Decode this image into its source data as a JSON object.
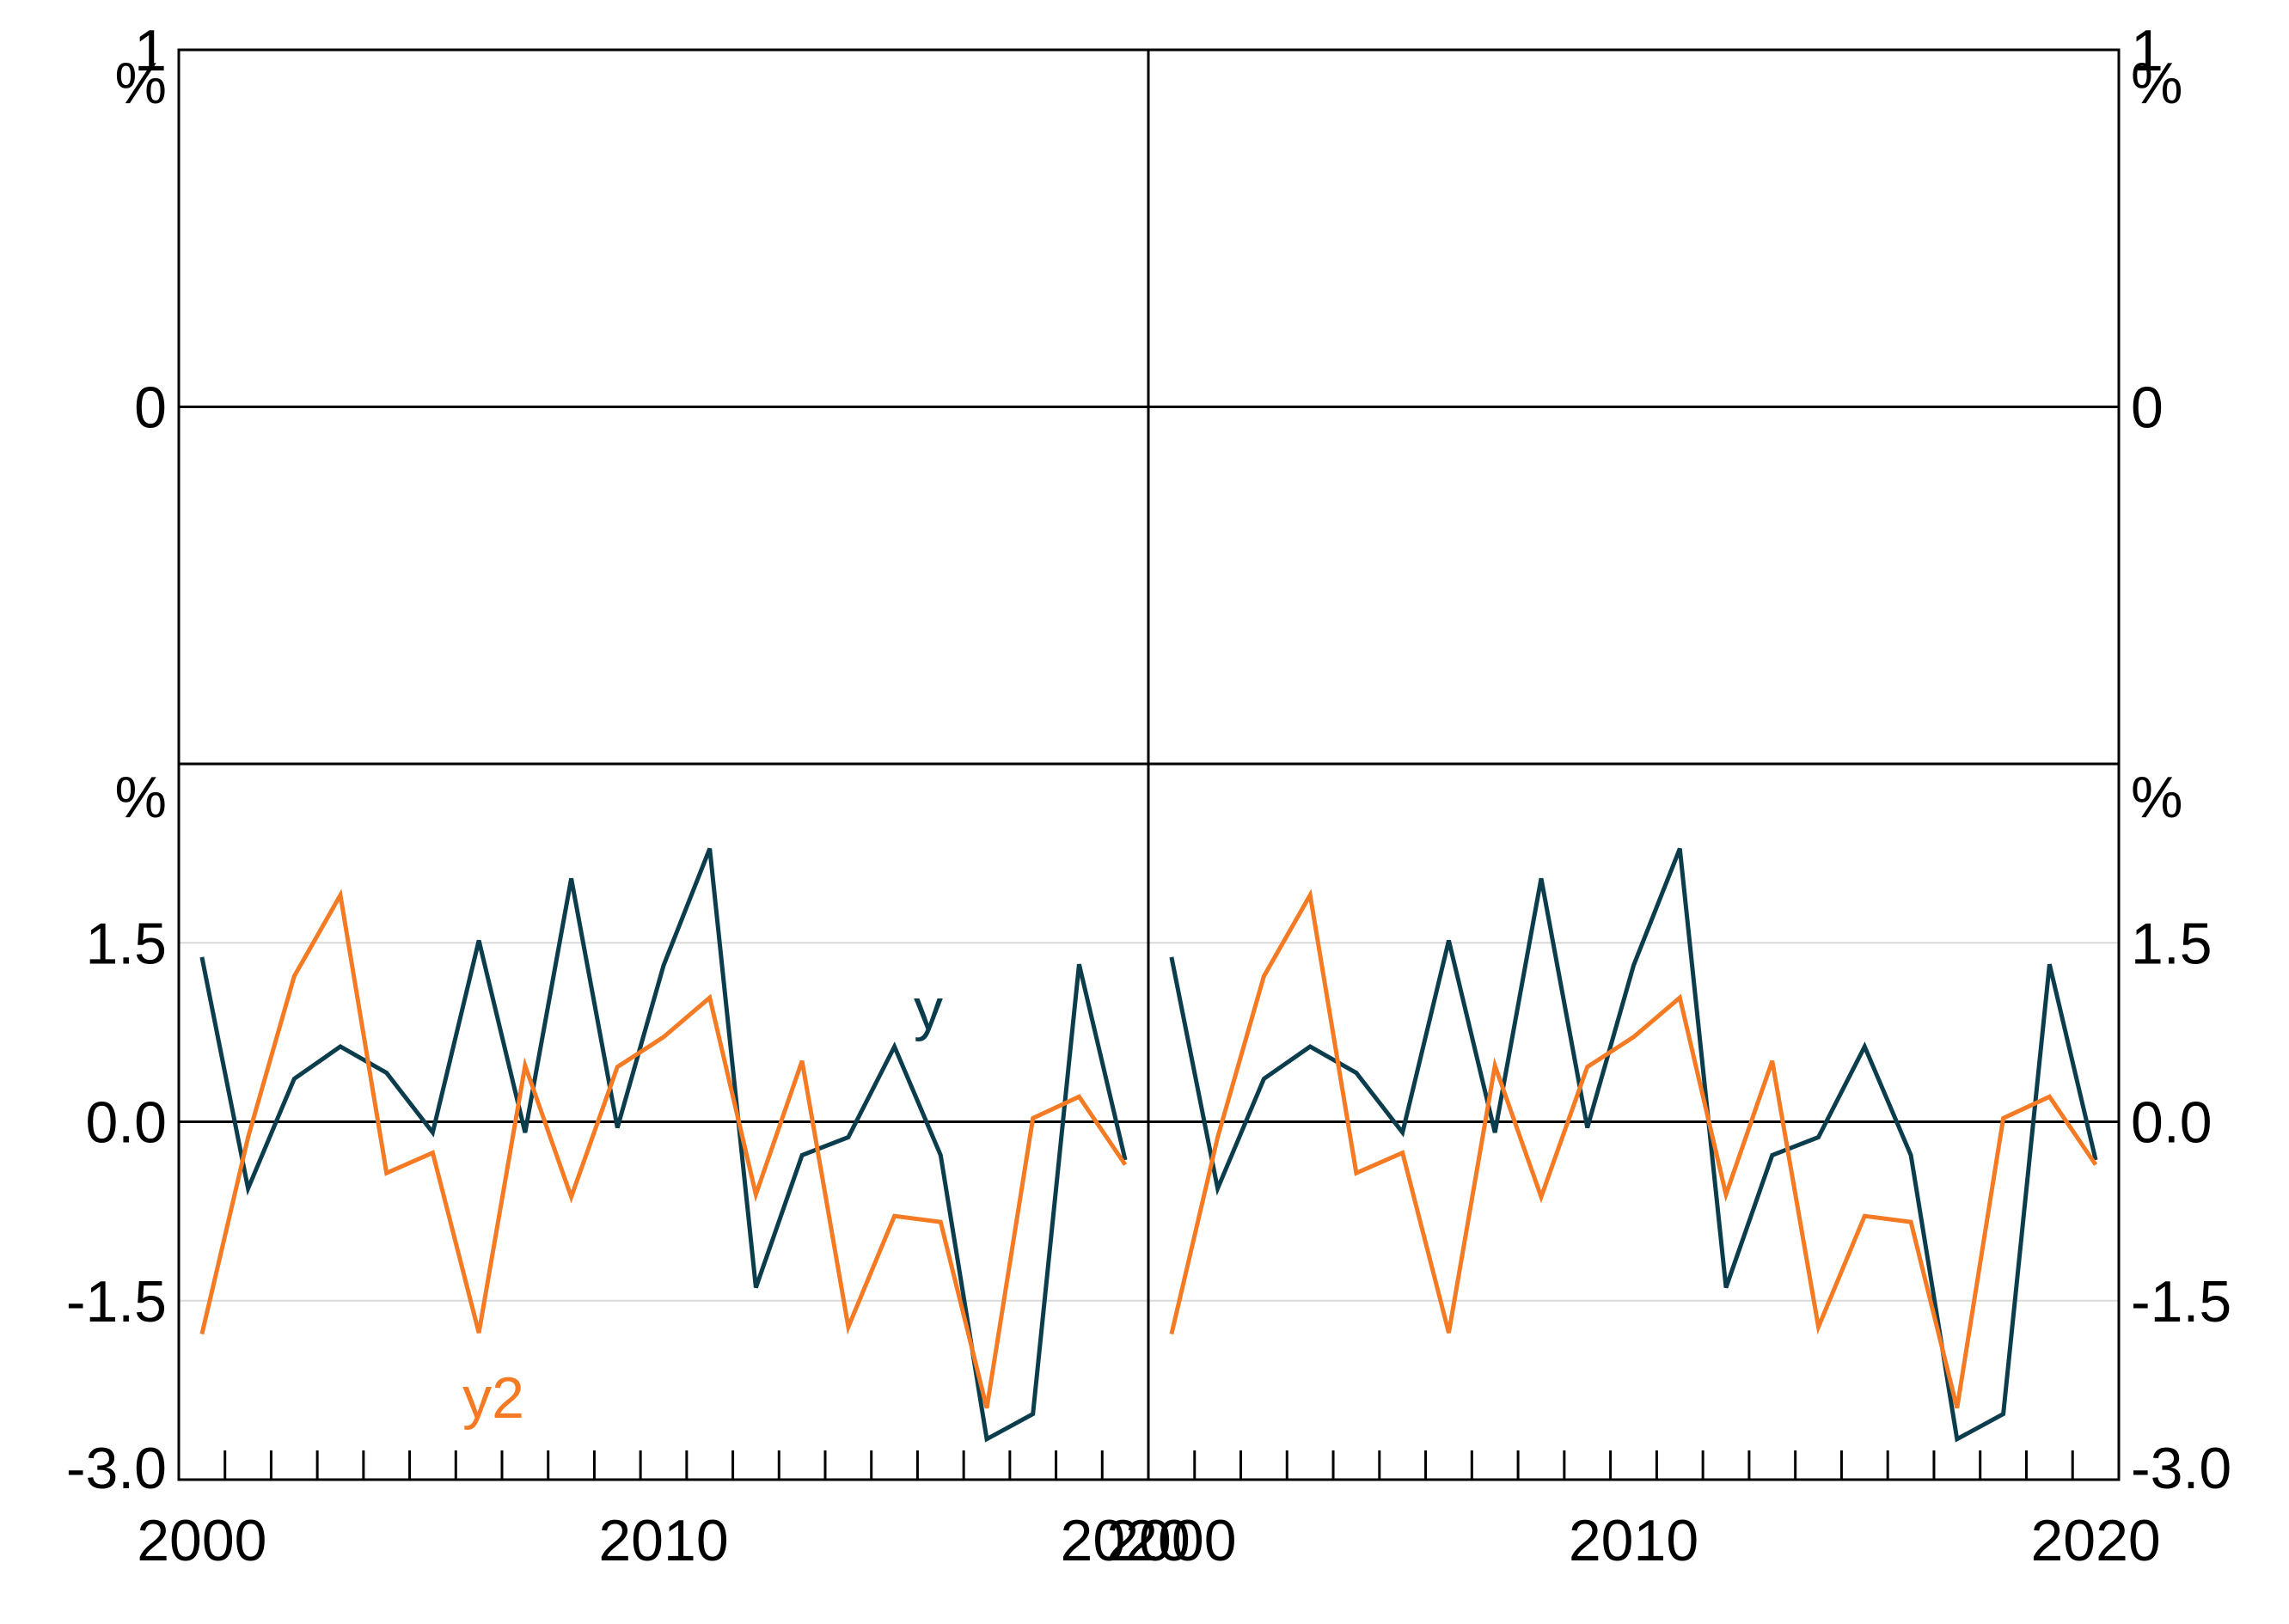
{
  "chart_data": [
    {
      "type": "line",
      "panel": "top-left",
      "unit_left": "%",
      "ylim": [
        -1,
        1
      ],
      "yticks": [
        "1",
        "0"
      ],
      "series": []
    },
    {
      "type": "line",
      "panel": "top-right",
      "unit_right": "%",
      "ylim": [
        -1,
        1
      ],
      "yticks": [
        "1",
        "0"
      ],
      "series": []
    },
    {
      "type": "line",
      "panel": "bottom-left",
      "unit_left": "%",
      "ylim": [
        -3.0,
        3.0
      ],
      "yticks": [
        "1.5",
        "0.0",
        "-1.5",
        "-3.0"
      ],
      "xlim": [
        1999.5,
        2020.5
      ],
      "xticks": [
        "2000",
        "2010",
        "2020"
      ],
      "x": [
        2000,
        2001,
        2002,
        2003,
        2004,
        2005,
        2006,
        2007,
        2008,
        2009,
        2010,
        2011,
        2012,
        2013,
        2014,
        2015,
        2016,
        2017,
        2018,
        2019,
        2020
      ],
      "series": [
        {
          "name": "y",
          "color": "#0b3d4c",
          "values": [
            1.38,
            -0.56,
            0.36,
            0.63,
            0.41,
            -0.09,
            1.52,
            -0.09,
            2.04,
            -0.05,
            1.31,
            2.29,
            -1.39,
            -0.28,
            -0.13,
            0.63,
            -0.28,
            -2.66,
            -2.45,
            1.32,
            -0.32
          ]
        },
        {
          "name": "y2",
          "color": "#f47a23",
          "values": [
            -1.78,
            -0.13,
            1.22,
            1.9,
            -0.43,
            -0.26,
            -1.77,
            0.47,
            -0.63,
            0.46,
            0.71,
            1.04,
            -0.61,
            0.51,
            -1.72,
            -0.79,
            -0.84,
            -2.4,
            0.03,
            0.21,
            -0.36
          ]
        }
      ]
    },
    {
      "type": "line",
      "panel": "bottom-right",
      "unit_right": "%",
      "ylim": [
        -3.0,
        3.0
      ],
      "yticks": [
        "1.5",
        "0.0",
        "-1.5",
        "-3.0"
      ],
      "xlim": [
        1999.5,
        2020.5
      ],
      "xticks": [
        "2000",
        "2010",
        "2020"
      ],
      "x": [
        2000,
        2001,
        2002,
        2003,
        2004,
        2005,
        2006,
        2007,
        2008,
        2009,
        2010,
        2011,
        2012,
        2013,
        2014,
        2015,
        2016,
        2017,
        2018,
        2019,
        2020
      ],
      "series": [
        {
          "name": "y",
          "color": "#0b3d4c",
          "values": [
            1.38,
            -0.56,
            0.36,
            0.63,
            0.41,
            -0.09,
            1.52,
            -0.09,
            2.04,
            -0.05,
            1.31,
            2.29,
            -1.39,
            -0.28,
            -0.13,
            0.63,
            -0.28,
            -2.66,
            -2.45,
            1.32,
            -0.32
          ]
        },
        {
          "name": "y2",
          "color": "#f47a23",
          "values": [
            -1.78,
            -0.13,
            1.22,
            1.9,
            -0.43,
            -0.26,
            -1.77,
            0.47,
            -0.63,
            0.46,
            0.71,
            1.04,
            -0.61,
            0.51,
            -1.72,
            -0.79,
            -0.84,
            -2.4,
            0.03,
            0.21,
            -0.36
          ]
        }
      ]
    }
  ],
  "series_labels": {
    "y": "y",
    "y2": "y2"
  },
  "colors": {
    "y": "#0b3d4c",
    "y2": "#f47a23",
    "grid": "#d9d9d9",
    "axis": "#000000"
  }
}
